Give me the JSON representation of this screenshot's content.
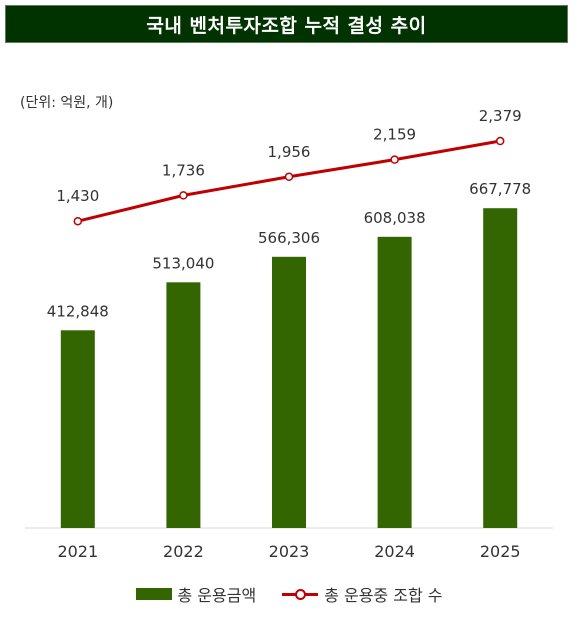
{
  "title": "국내 벤처투자조합 누적 결성 추이",
  "unit": "(단위: 억원, 개)",
  "colors": {
    "title_bg": "#003300",
    "bar": "#336600",
    "line": "#c00000"
  },
  "chart_data": {
    "type": "bar",
    "categories": [
      "2021",
      "2022",
      "2023",
      "2024",
      "2025"
    ],
    "series": [
      {
        "name": "총 운용금액",
        "type": "bar",
        "axis": "left",
        "values": [
          412848,
          513040,
          566306,
          608038,
          667778
        ],
        "labels": [
          "412,848",
          "513,040",
          "566,306",
          "608,038",
          "667,778"
        ]
      },
      {
        "name": "총 운용중 조합 수",
        "type": "line",
        "axis": "right",
        "values": [
          1430,
          1736,
          1956,
          2159,
          2379
        ],
        "labels": [
          "1,430",
          "1,736",
          "1,956",
          "2,159",
          "2,379"
        ]
      }
    ],
    "ylim": [
      0,
      900000
    ],
    "y2lim": [
      -2200,
      2900
    ],
    "grid": false,
    "legend": "bottom"
  }
}
